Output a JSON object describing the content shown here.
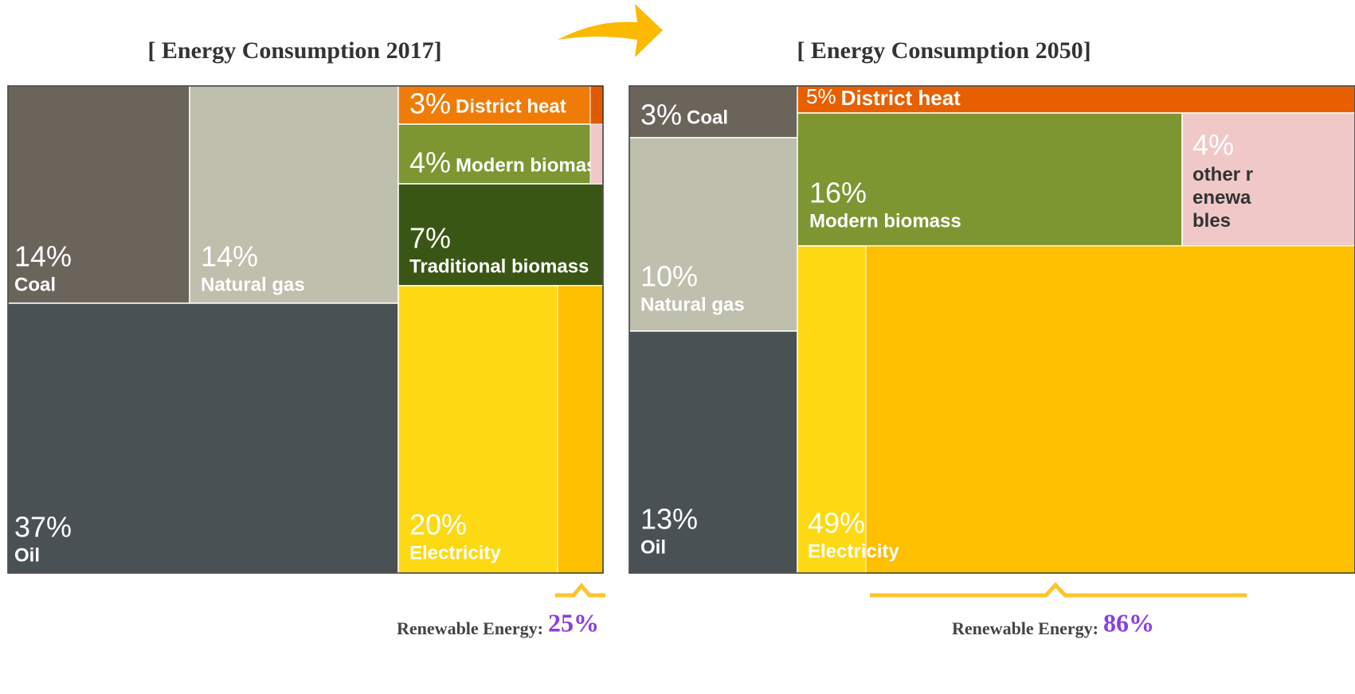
{
  "chart_data": [
    {
      "type": "treemap",
      "title": "[ Energy Consumption 2017]",
      "items": [
        {
          "label": "Coal",
          "value": 14,
          "value_label": "14%",
          "color": "#6b645b"
        },
        {
          "label": "Natural gas",
          "value": 14,
          "value_label": "14%",
          "color": "#bfbfae"
        },
        {
          "label": "Oil",
          "value": 37,
          "value_label": "37%",
          "color": "#4a5154"
        },
        {
          "label": "District heat",
          "value": 3,
          "value_label": "3%",
          "color": "#ef7c08"
        },
        {
          "label": "Modern biomass",
          "value": 4,
          "value_label": "4%",
          "color": "#7d9632"
        },
        {
          "label": "Traditional biomass",
          "value": 7,
          "value_label": "7%",
          "color": "#3a5614"
        },
        {
          "label": "Electricity",
          "value": 20,
          "value_label": "20%",
          "color": "#fdd913"
        }
      ],
      "renewable": {
        "label": "Renewable Energy:",
        "value": 25,
        "value_label": "25%"
      }
    },
    {
      "type": "treemap",
      "title": "[ Energy Consumption 2050]",
      "items": [
        {
          "label": "Coal",
          "value": 3,
          "value_label": "3%",
          "color": "#6b645b"
        },
        {
          "label": "Natural gas",
          "value": 10,
          "value_label": "10%",
          "color": "#bfbfae"
        },
        {
          "label": "Oil",
          "value": 13,
          "value_label": "13%",
          "color": "#4a5154"
        },
        {
          "label": "District heat",
          "value": 5,
          "value_label": "5%",
          "color": "#e85f00"
        },
        {
          "label": "Modern biomass",
          "value": 16,
          "value_label": "16%",
          "color": "#7d9632"
        },
        {
          "label": "other renewables",
          "value": 4,
          "value_label": "4%",
          "color": "#f0c8c8"
        },
        {
          "label": "Electricity",
          "value": 49,
          "value_label": "49%",
          "color": "#fdd913"
        }
      ],
      "renewable": {
        "label": "Renewable Energy:",
        "value": 86,
        "value_label": "86%"
      }
    }
  ]
}
